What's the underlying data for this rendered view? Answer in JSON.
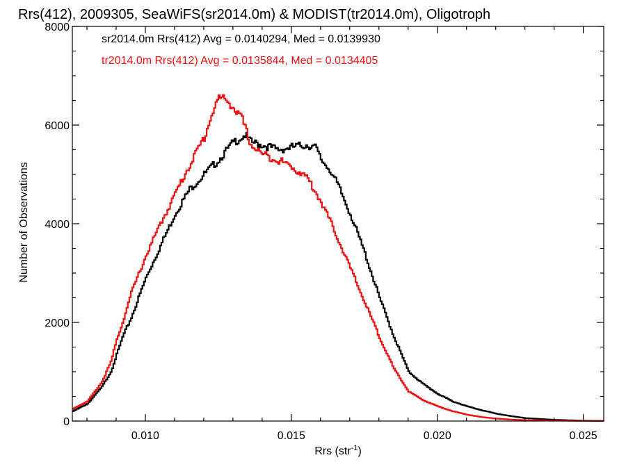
{
  "chart_data": {
    "type": "line",
    "title": "Rrs(412), 2009305, SeaWiFS(sr2014.0m) & MODIST(tr2014.0m), Oligotroph",
    "xlabel": "Rrs (str",
    "xlabel_sup": "-1",
    "xlabel_end": ")",
    "ylabel": "Number of Observations",
    "xlim": [
      0.0075,
      0.0257
    ],
    "ylim": [
      0,
      8000
    ],
    "x_ticks": [
      0.01,
      0.015,
      0.02,
      0.025
    ],
    "x_tick_labels": [
      "0.010",
      "0.015",
      "0.020",
      "0.025"
    ],
    "y_ticks": [
      0,
      2000,
      4000,
      6000,
      8000
    ],
    "y_tick_labels": [
      "0",
      "2000",
      "4000",
      "6000",
      "8000"
    ],
    "grid": false,
    "annotations": [
      {
        "text": "sr2014.0m Rrs(412) Avg = 0.0140294, Med = 0.0139930",
        "color": "#000000"
      },
      {
        "text": "tr2014.0m Rrs(412) Avg = 0.0135844, Med = 0.0134405",
        "color": "#ee1111"
      }
    ],
    "series": [
      {
        "color": "#000000",
        "x": [
          0.0075,
          0.008,
          0.0085,
          0.0088,
          0.009,
          0.0092,
          0.0095,
          0.01,
          0.0105,
          0.011,
          0.0115,
          0.012,
          0.0125,
          0.013,
          0.0134,
          0.0136,
          0.014,
          0.0145,
          0.015,
          0.0155,
          0.0158,
          0.016,
          0.0163,
          0.0166,
          0.017,
          0.0175,
          0.018,
          0.0185,
          0.019,
          0.0195,
          0.02,
          0.0205,
          0.021,
          0.0215,
          0.022,
          0.0225,
          0.023,
          0.024,
          0.025,
          0.0257
        ],
        "y": [
          200,
          350,
          700,
          1000,
          1350,
          1700,
          2100,
          2900,
          3550,
          4200,
          4700,
          5000,
          5300,
          5650,
          5800,
          5650,
          5600,
          5500,
          5550,
          5600,
          5550,
          5300,
          5100,
          4750,
          4200,
          3400,
          2500,
          1700,
          1000,
          750,
          550,
          400,
          300,
          220,
          150,
          100,
          60,
          25,
          8,
          3
        ]
      },
      {
        "color": "#ee1111",
        "x": [
          0.0075,
          0.008,
          0.0085,
          0.0088,
          0.009,
          0.0092,
          0.0095,
          0.01,
          0.0105,
          0.011,
          0.0115,
          0.012,
          0.0123,
          0.0125,
          0.0128,
          0.013,
          0.0133,
          0.0136,
          0.014,
          0.0145,
          0.015,
          0.0155,
          0.016,
          0.0165,
          0.017,
          0.0175,
          0.018,
          0.0185,
          0.019,
          0.0195,
          0.02,
          0.0205,
          0.021,
          0.0215,
          0.022,
          0.0225,
          0.023,
          0.024,
          0.025,
          0.0257
        ],
        "y": [
          250,
          400,
          800,
          1200,
          1650,
          2000,
          2600,
          3350,
          4000,
          4600,
          5200,
          5750,
          6300,
          6550,
          6500,
          6350,
          6100,
          5600,
          5400,
          5300,
          5150,
          4950,
          4450,
          3800,
          3100,
          2400,
          1700,
          1050,
          600,
          420,
          300,
          200,
          130,
          80,
          50,
          30,
          18,
          10,
          5,
          2
        ]
      }
    ]
  }
}
